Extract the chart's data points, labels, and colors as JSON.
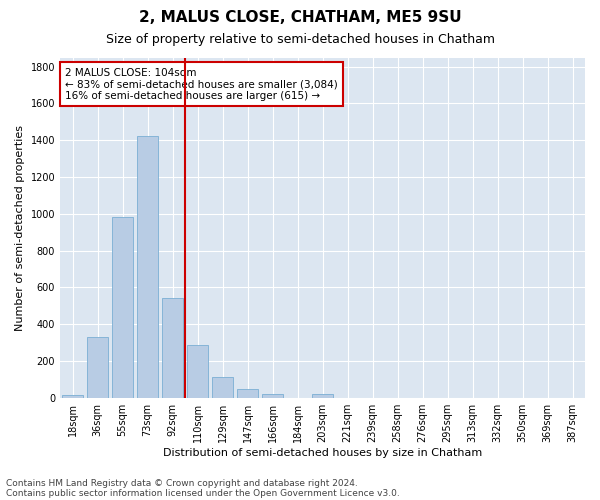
{
  "title": "2, MALUS CLOSE, CHATHAM, ME5 9SU",
  "subtitle": "Size of property relative to semi-detached houses in Chatham",
  "xlabel": "Distribution of semi-detached houses by size in Chatham",
  "ylabel": "Number of semi-detached properties",
  "categories": [
    "18sqm",
    "36sqm",
    "55sqm",
    "73sqm",
    "92sqm",
    "110sqm",
    "129sqm",
    "147sqm",
    "166sqm",
    "184sqm",
    "203sqm",
    "221sqm",
    "239sqm",
    "258sqm",
    "276sqm",
    "295sqm",
    "313sqm",
    "332sqm",
    "350sqm",
    "369sqm",
    "387sqm"
  ],
  "values": [
    15,
    328,
    984,
    1421,
    540,
    284,
    110,
    45,
    18,
    0,
    20,
    0,
    0,
    0,
    0,
    0,
    0,
    0,
    0,
    0,
    0
  ],
  "bar_color": "#b8cce4",
  "bar_edge_color": "#7bafd4",
  "vline_x": 4.5,
  "vline_color": "#cc0000",
  "annotation_line1": "2 MALUS CLOSE: 104sqm",
  "annotation_line2": "← 83% of semi-detached houses are smaller (3,084)",
  "annotation_line3": "16% of semi-detached houses are larger (615) →",
  "annotation_box_color": "#ffffff",
  "annotation_box_edge": "#cc0000",
  "ylim": [
    0,
    1850
  ],
  "yticks": [
    0,
    200,
    400,
    600,
    800,
    1000,
    1200,
    1400,
    1600,
    1800
  ],
  "footer_line1": "Contains HM Land Registry data © Crown copyright and database right 2024.",
  "footer_line2": "Contains public sector information licensed under the Open Government Licence v3.0.",
  "plot_bg_color": "#dce6f1",
  "title_fontsize": 11,
  "subtitle_fontsize": 9,
  "axis_label_fontsize": 8,
  "tick_fontsize": 7,
  "annotation_fontsize": 7.5,
  "footer_fontsize": 6.5
}
